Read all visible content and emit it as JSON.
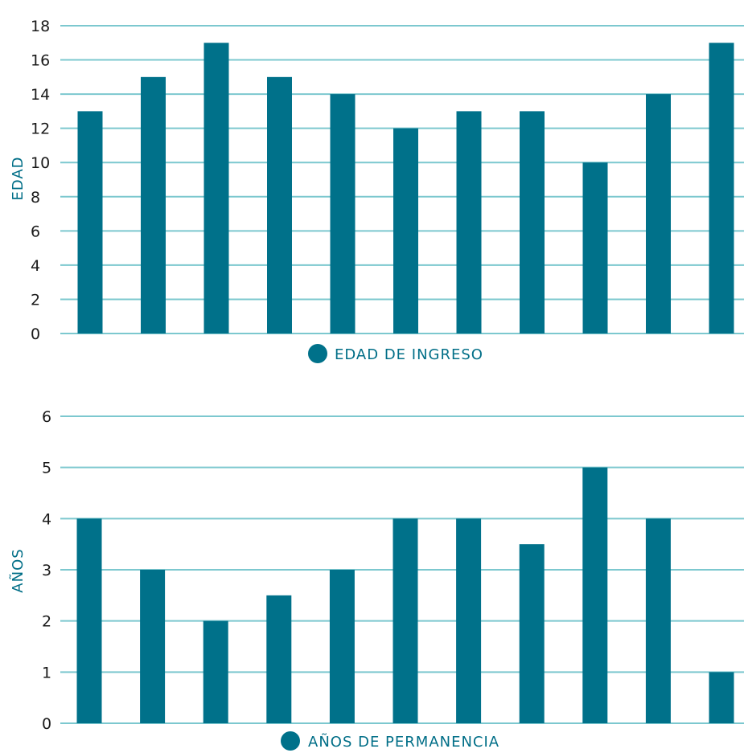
{
  "colors": {
    "bar": "#00718a",
    "grid": "#7cc8cf",
    "axis_text": "#1a1a1a",
    "label": "#006e87"
  },
  "chart_data": [
    {
      "type": "bar",
      "ylabel": "EDAD",
      "xlabel": "",
      "ylim": [
        0,
        18
      ],
      "yticks": [
        "0",
        "2",
        "4",
        "6",
        "8",
        "10",
        "12",
        "14",
        "16",
        "18"
      ],
      "grid": true,
      "legend_position": "bottom-center",
      "series": [
        {
          "name": "EDAD DE INGRESO",
          "values": [
            13,
            15,
            17,
            15,
            14,
            12,
            13,
            13,
            10,
            14,
            17
          ]
        }
      ]
    },
    {
      "type": "bar",
      "ylabel": "AÑOS",
      "xlabel": "",
      "ylim": [
        0,
        6
      ],
      "yticks": [
        "0",
        "1",
        "2",
        "3",
        "4",
        "5",
        "6"
      ],
      "grid": true,
      "legend_position": "bottom-center",
      "series": [
        {
          "name": "AÑOS DE PERMANENCIA",
          "values": [
            4,
            3,
            2,
            2.5,
            3,
            4,
            4,
            3.5,
            5,
            4,
            1
          ]
        }
      ]
    }
  ]
}
